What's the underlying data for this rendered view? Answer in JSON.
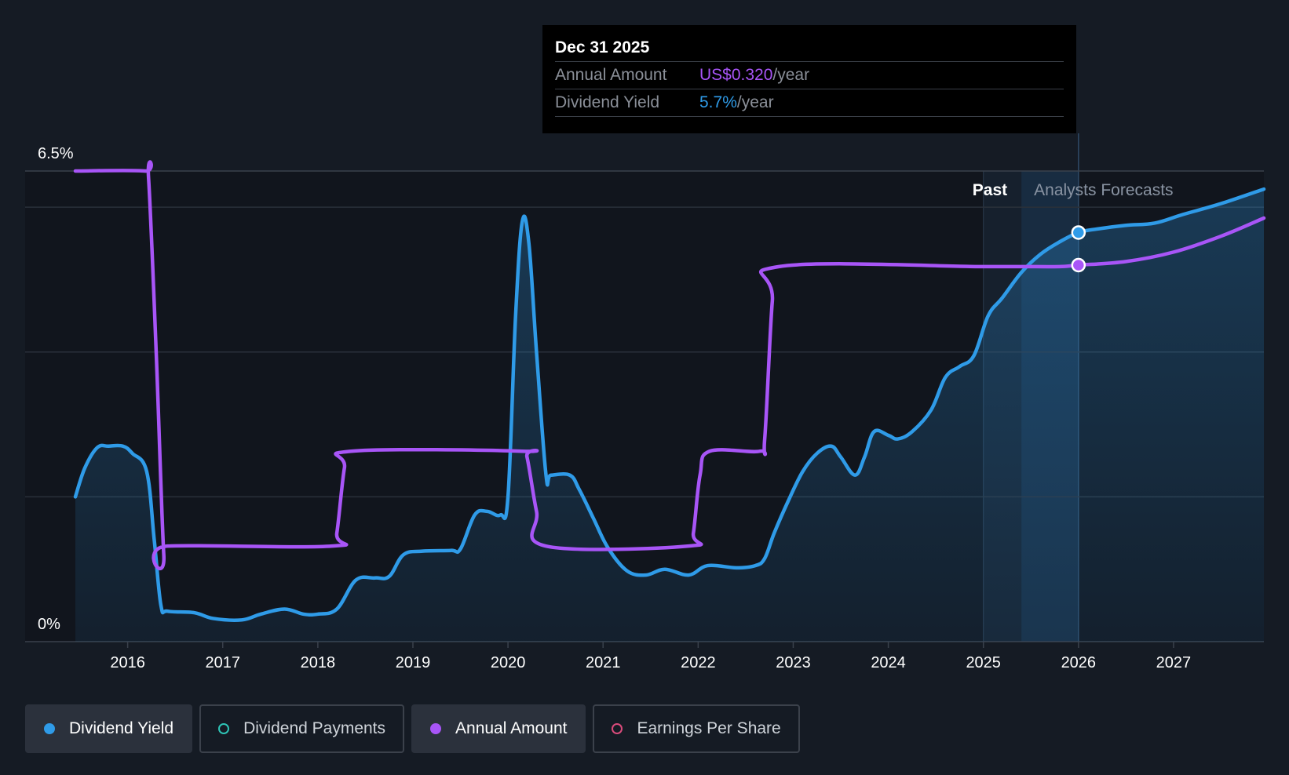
{
  "chart_data": {
    "type": "line",
    "y_axis": {
      "labels": [
        "6.5%",
        "0%"
      ],
      "min": 0,
      "max": 6.5
    },
    "x_axis": {
      "ticks": [
        "2016",
        "2017",
        "2018",
        "2019",
        "2020",
        "2021",
        "2022",
        "2023",
        "2024",
        "2025",
        "2026",
        "2027"
      ],
      "range": [
        2015.45,
        2027.95
      ]
    },
    "bands": {
      "past_label": "Past",
      "forecast_label": "Analysts Forecasts",
      "past_start": 2025.0,
      "forecast_start": 2025.4,
      "forecast_end": 2026.0
    },
    "series": [
      {
        "name": "Dividend Yield",
        "color": "#2f9be8",
        "area": true,
        "points": [
          [
            2015.45,
            2.0
          ],
          [
            2015.55,
            2.4
          ],
          [
            2015.68,
            2.68
          ],
          [
            2015.8,
            2.7
          ],
          [
            2015.95,
            2.7
          ],
          [
            2016.05,
            2.6
          ],
          [
            2016.2,
            2.35
          ],
          [
            2016.28,
            1.4
          ],
          [
            2016.35,
            0.5
          ],
          [
            2016.42,
            0.42
          ],
          [
            2016.7,
            0.4
          ],
          [
            2016.9,
            0.32
          ],
          [
            2017.2,
            0.3
          ],
          [
            2017.4,
            0.38
          ],
          [
            2017.65,
            0.45
          ],
          [
            2017.85,
            0.38
          ],
          [
            2018.0,
            0.38
          ],
          [
            2018.2,
            0.45
          ],
          [
            2018.4,
            0.85
          ],
          [
            2018.6,
            0.88
          ],
          [
            2018.75,
            0.9
          ],
          [
            2018.9,
            1.2
          ],
          [
            2019.1,
            1.25
          ],
          [
            2019.4,
            1.26
          ],
          [
            2019.5,
            1.28
          ],
          [
            2019.65,
            1.75
          ],
          [
            2019.78,
            1.8
          ],
          [
            2019.92,
            1.75
          ],
          [
            2020.0,
            2.0
          ],
          [
            2020.08,
            4.5
          ],
          [
            2020.15,
            5.8
          ],
          [
            2020.22,
            5.5
          ],
          [
            2020.3,
            4.0
          ],
          [
            2020.4,
            2.3
          ],
          [
            2020.45,
            2.3
          ],
          [
            2020.65,
            2.3
          ],
          [
            2020.75,
            2.1
          ],
          [
            2020.9,
            1.7
          ],
          [
            2021.05,
            1.3
          ],
          [
            2021.25,
            0.98
          ],
          [
            2021.45,
            0.92
          ],
          [
            2021.65,
            1.0
          ],
          [
            2021.9,
            0.92
          ],
          [
            2022.1,
            1.05
          ],
          [
            2022.4,
            1.02
          ],
          [
            2022.6,
            1.05
          ],
          [
            2022.7,
            1.15
          ],
          [
            2022.8,
            1.5
          ],
          [
            2022.95,
            1.95
          ],
          [
            2023.1,
            2.35
          ],
          [
            2023.25,
            2.6
          ],
          [
            2023.4,
            2.7
          ],
          [
            2023.5,
            2.55
          ],
          [
            2023.65,
            2.3
          ],
          [
            2023.75,
            2.55
          ],
          [
            2023.85,
            2.9
          ],
          [
            2024.0,
            2.85
          ],
          [
            2024.1,
            2.8
          ],
          [
            2024.25,
            2.9
          ],
          [
            2024.45,
            3.2
          ],
          [
            2024.6,
            3.65
          ],
          [
            2024.75,
            3.8
          ],
          [
            2024.9,
            3.95
          ],
          [
            2025.05,
            4.5
          ],
          [
            2025.2,
            4.75
          ],
          [
            2025.4,
            5.1
          ],
          [
            2025.6,
            5.35
          ],
          [
            2025.8,
            5.52
          ],
          [
            2026.0,
            5.65
          ],
          [
            2026.2,
            5.7
          ],
          [
            2026.5,
            5.75
          ],
          [
            2026.8,
            5.78
          ],
          [
            2027.1,
            5.9
          ],
          [
            2027.5,
            6.05
          ],
          [
            2027.95,
            6.25
          ]
        ]
      },
      {
        "name": "Annual Amount",
        "color": "#a855f7",
        "area": false,
        "points": [
          [
            2015.45,
            6.5
          ],
          [
            2016.18,
            6.5
          ],
          [
            2016.22,
            6.4
          ],
          [
            2016.3,
            4.0
          ],
          [
            2016.38,
            1.2
          ],
          [
            2016.42,
            1.32
          ],
          [
            2018.15,
            1.32
          ],
          [
            2018.2,
            1.5
          ],
          [
            2018.28,
            2.4
          ],
          [
            2018.35,
            2.63
          ],
          [
            2020.15,
            2.63
          ],
          [
            2020.2,
            2.55
          ],
          [
            2020.3,
            1.8
          ],
          [
            2020.4,
            1.32
          ],
          [
            2021.9,
            1.32
          ],
          [
            2021.95,
            1.5
          ],
          [
            2022.02,
            2.3
          ],
          [
            2022.12,
            2.63
          ],
          [
            2022.65,
            2.63
          ],
          [
            2022.7,
            2.8
          ],
          [
            2022.78,
            4.7
          ],
          [
            2022.85,
            5.18
          ],
          [
            2025.0,
            5.18
          ],
          [
            2025.4,
            5.18
          ],
          [
            2025.8,
            5.18
          ],
          [
            2026.0,
            5.2
          ],
          [
            2026.5,
            5.25
          ],
          [
            2027.0,
            5.38
          ],
          [
            2027.5,
            5.6
          ],
          [
            2027.95,
            5.85
          ]
        ]
      }
    ],
    "highlight": {
      "x": 2026.0,
      "points": [
        {
          "series": "Dividend Yield",
          "y": 5.65
        },
        {
          "series": "Annual Amount",
          "y": 5.2
        }
      ]
    }
  },
  "tooltip": {
    "date": "Dec 31 2025",
    "rows": [
      {
        "label": "Annual Amount",
        "value": "US$0.320",
        "unit": "/year"
      },
      {
        "label": "Dividend Yield",
        "value": "5.7%",
        "unit": "/year"
      }
    ]
  },
  "legend": [
    {
      "label": "Dividend Yield",
      "color": "#2f9be8",
      "filled": true,
      "active": true
    },
    {
      "label": "Dividend Payments",
      "color": "#2ec4b6",
      "filled": false,
      "active": false
    },
    {
      "label": "Annual Amount",
      "color": "#a855f7",
      "filled": true,
      "active": true
    },
    {
      "label": "Earnings Per Share",
      "color": "#d94b7b",
      "filled": false,
      "active": false
    }
  ]
}
